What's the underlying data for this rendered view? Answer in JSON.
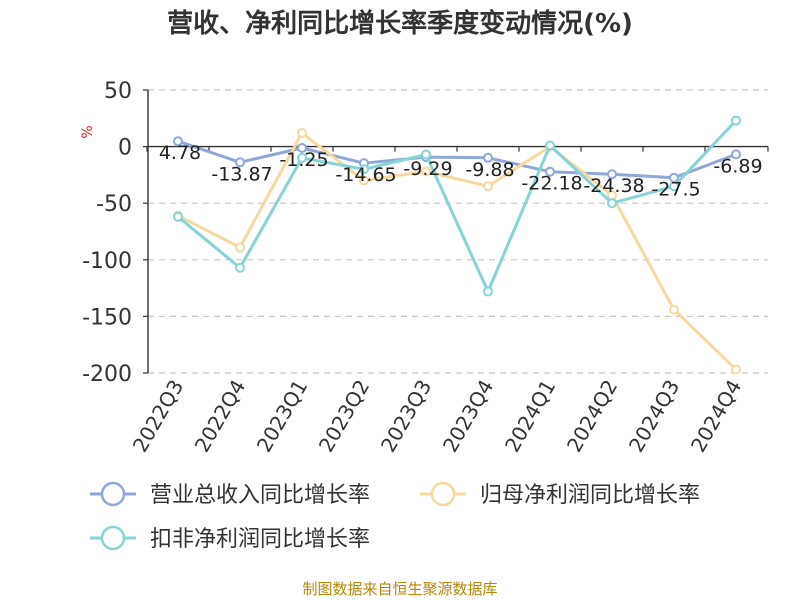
{
  "chart_data": {
    "type": "line",
    "title": "营收、净利同比增长率季度变动情况(%)",
    "ylabel": "%",
    "ylim": [
      -200,
      50
    ],
    "yticks": [
      50,
      0,
      -50,
      -100,
      -150,
      -200
    ],
    "grid": true,
    "legend_position": "bottom",
    "categories": [
      "2022Q3",
      "2022Q4",
      "2023Q1",
      "2023Q2",
      "2023Q3",
      "2023Q4",
      "2024Q1",
      "2024Q2",
      "2024Q3",
      "2024Q4"
    ],
    "series": [
      {
        "name": "营业总收入同比增长率",
        "color": "#8fa8d8",
        "values": [
          4.78,
          -13.87,
          -1.25,
          -14.65,
          -9.29,
          -9.88,
          -22.18,
          -24.38,
          -27.5,
          -6.89
        ],
        "data_labels": [
          "4.78",
          "-13.87",
          "-1.25",
          "-14.65",
          "-9.29",
          "-9.88",
          "-22.18",
          "-24.38",
          "-27.5",
          "-6.89"
        ]
      },
      {
        "name": "归母净利润同比增长率",
        "color": "#f7d9a0",
        "values": [
          -61,
          -89,
          12,
          -30,
          -22,
          -35,
          0,
          -43,
          -144,
          -197
        ]
      },
      {
        "name": "扣非净利润同比增长率",
        "color": "#86d4d8",
        "values": [
          -62,
          -107,
          -10,
          -20,
          -7,
          -128,
          1,
          -50,
          -35,
          23
        ]
      }
    ]
  },
  "footer": {
    "source": "制图数据来自恒生聚源数据库"
  }
}
